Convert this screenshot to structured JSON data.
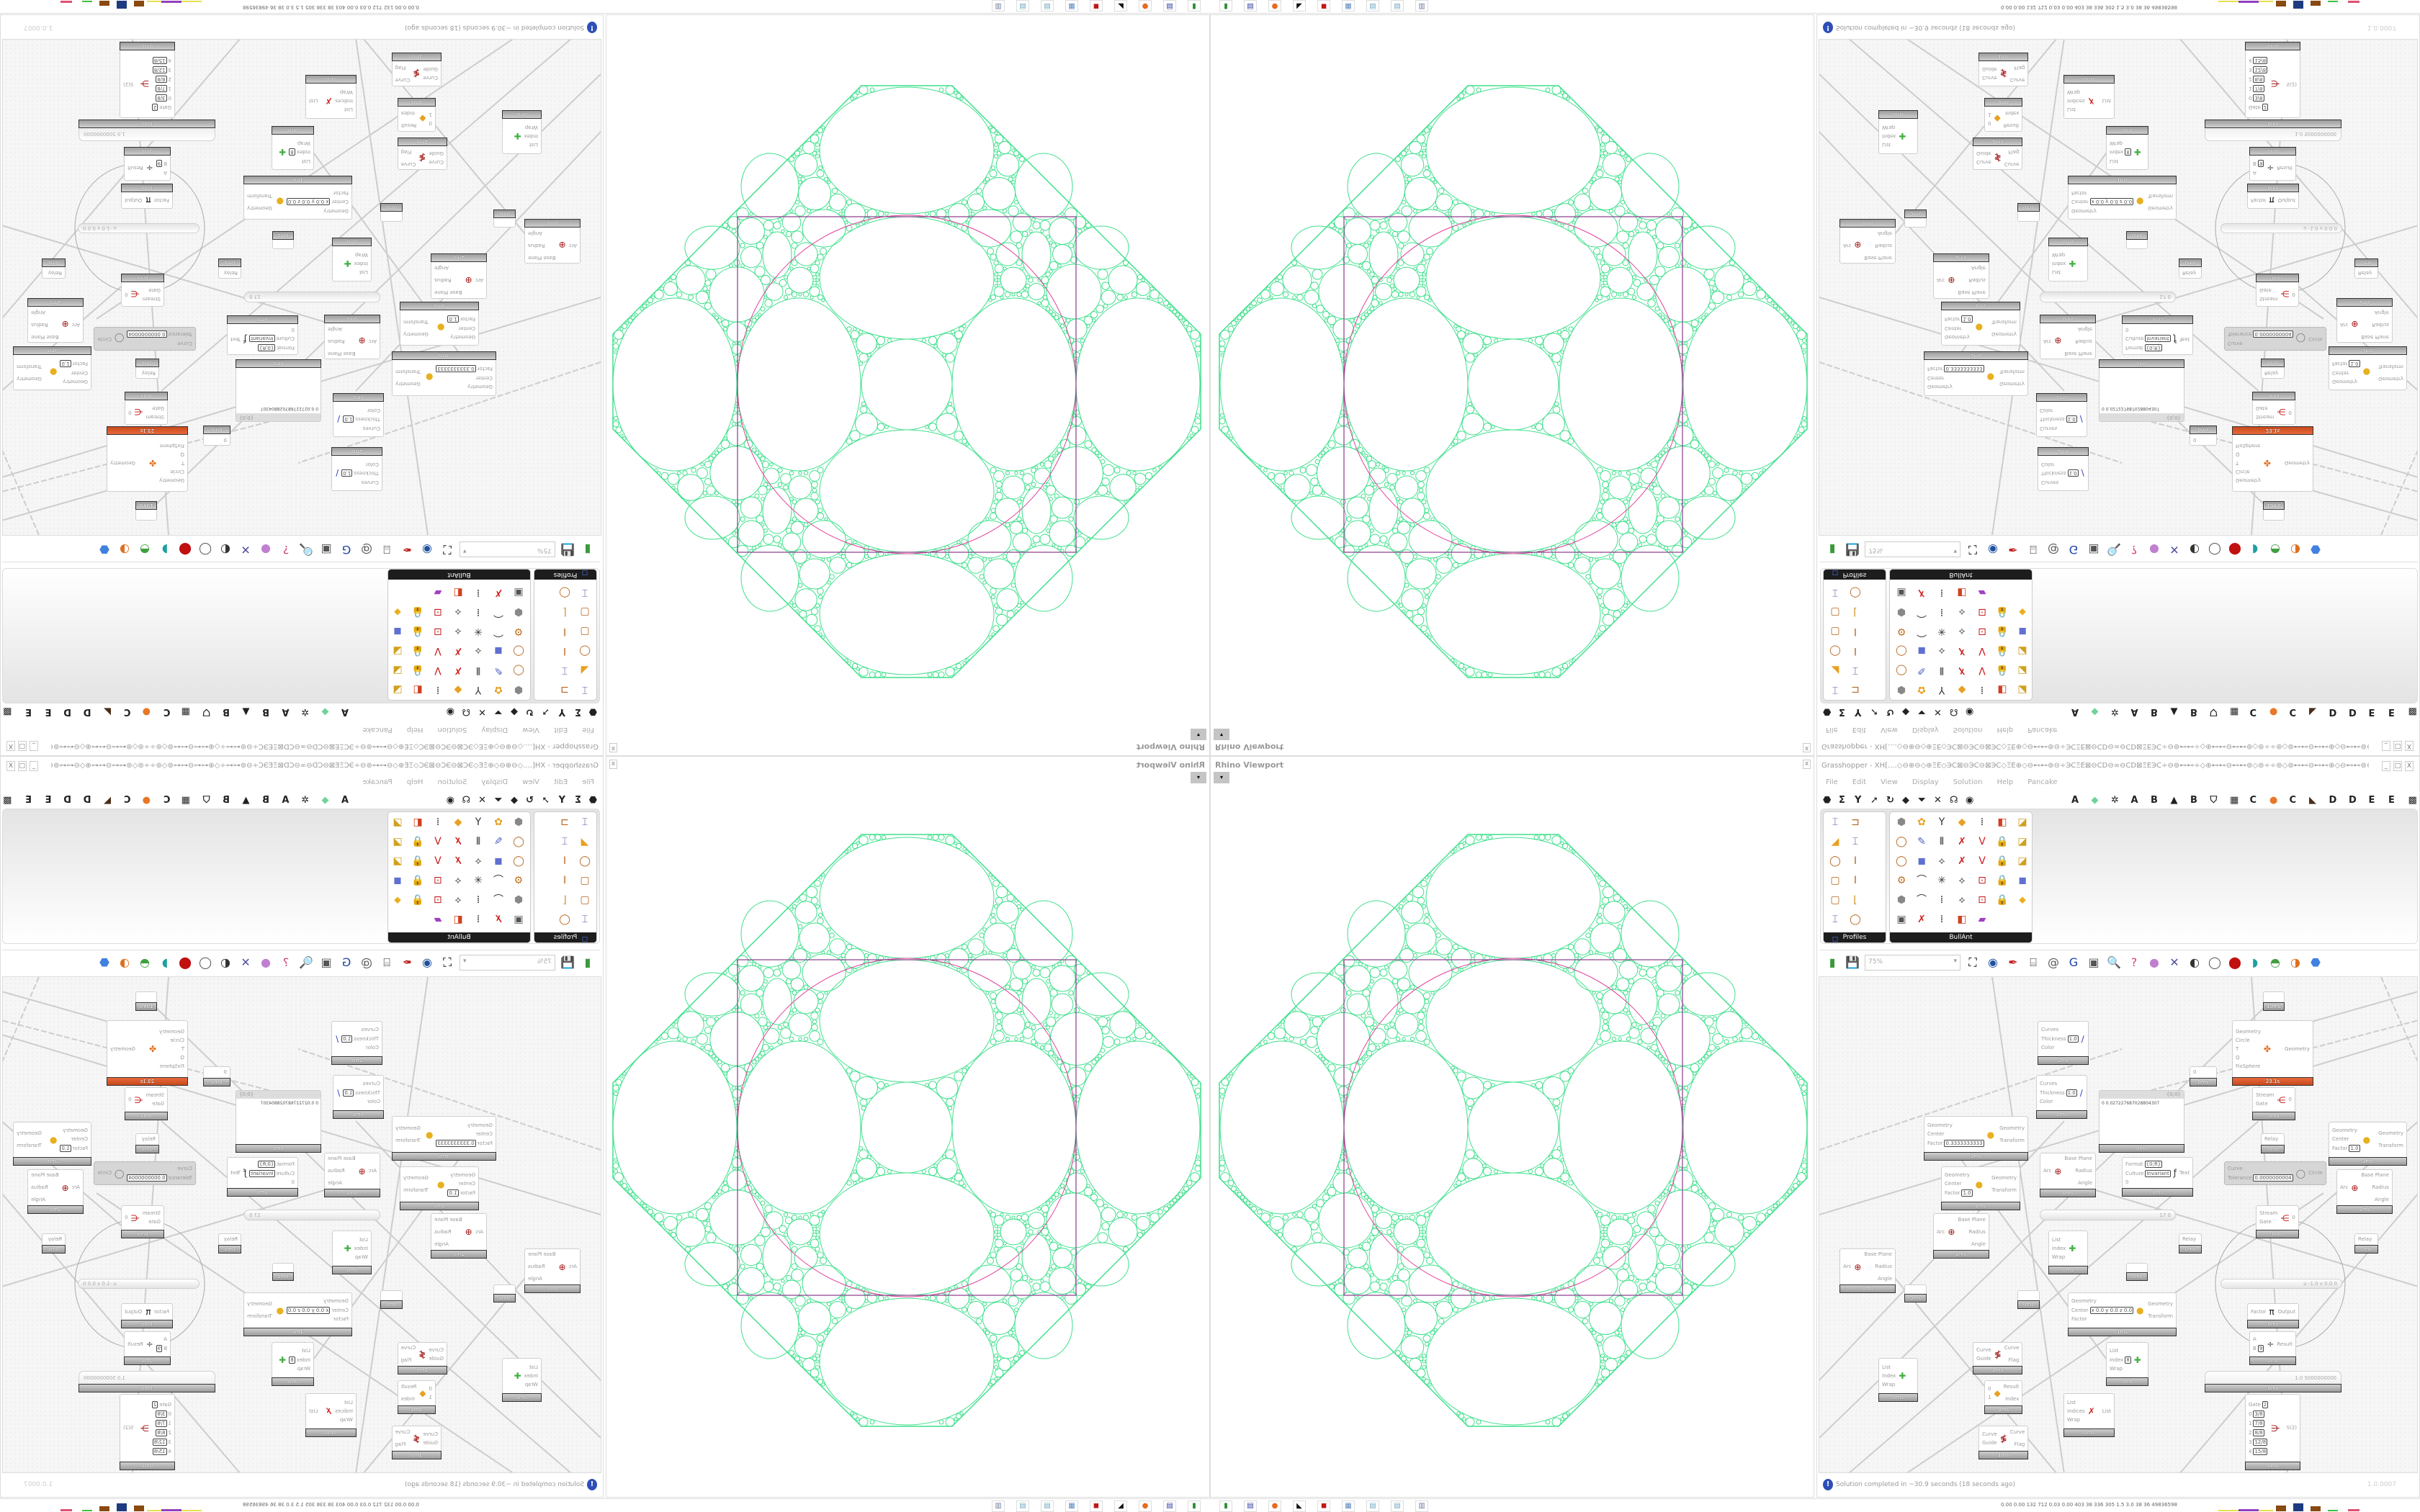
{
  "rhino": {
    "title": "Rhino Viewport",
    "close": "x",
    "view_menu": "▾"
  },
  "grasshopper": {
    "title": "Grasshopper - XH[....◇⊖⊕⊖◇⊕ΞΕ◇ЭⅭ⊠⊖ЭⅭ⊖⊠ЭⅭ◇ΞΕ⊕◇⊖⊷⊷⊚⊖÷ЭⅭΞΕ⊠⊖ⅭⅮ⊖∞⊖ⅭⅮ⊠ΞΕЭⅭ÷⊖⊚⊷⊷÷◇⊕⊷⊷⊖⊷⊷⊚◇⊚÷÷⊚◇⊚⊷⊷⊖⊷⊷⊕◇⊖⊷⊷⊚⊖÷ЭⅭΞΕ⊠⊖ⅭⅮ⊖∞⊖...",
    "window_buttons": [
      "_",
      "□",
      "X"
    ],
    "menu": [
      "File",
      "Edit",
      "View",
      "Display",
      "Solution",
      "Help",
      "Pancake"
    ],
    "tabs_left": [
      "⬣",
      "Σ",
      "Y",
      "➚",
      "↻",
      "◆",
      "⏷",
      "✕",
      "☊",
      "◉"
    ],
    "tabs_right": [
      "A",
      "◆",
      "✲",
      "A",
      "B",
      "▲",
      "B",
      "⛉",
      "▦",
      "C",
      "●",
      "C",
      "◣",
      "D",
      "D",
      "E",
      "E",
      "▩"
    ],
    "panels": [
      {
        "label": "Profiles",
        "icons": [
          "I-profile",
          "channel",
          "angle-shape",
          "I-profile",
          "ring",
          "I-beam",
          "box-profile",
          "I-beam",
          "box-profile",
          "L-profile",
          "I-profile",
          "ring",
          "small-squares"
        ]
      },
      {
        "label": "BullAnt",
        "icons": [
          "solid",
          "flower",
          "vector-tree",
          "kite",
          "node-align",
          "red-frame",
          "red-box",
          "ring",
          "brush",
          "columns",
          "red-x",
          "red-v",
          "lock-tool",
          "red-box",
          "ring",
          "blue-cube",
          "polyline",
          "red-x",
          "red-v",
          "lock-tool",
          "red-box",
          "gear-ring",
          "curve",
          "spark",
          "polyline",
          "node-red",
          "lock-tool",
          "blue-cube",
          "solid",
          "curve",
          "node-align",
          "polyline",
          "node-red",
          "lock-tool",
          "yellow-gem",
          "panel",
          "red-x",
          "node-align",
          "red-frame",
          "rainbow"
        ]
      }
    ],
    "canvas_toolbar": {
      "zoom": "75%",
      "icons": [
        "open-file",
        "save-file",
        "zoom-extents",
        "preview-eye",
        "sketch-pen",
        "cluster",
        "email",
        "gha",
        "window",
        "search-s",
        "help-box",
        "bulb",
        "wires",
        "shade-a",
        "shade-b",
        "shade-c",
        "surface-a",
        "surface-b",
        "surface-c",
        "sphere"
      ]
    },
    "status": {
      "message": "Solution completed in ~30.9 seconds (18 seconds ago)",
      "version": "1.0.0007"
    },
    "nodes": [
      {
        "footer": "19ms"
      },
      {
        "inputs": [
          {
            "label": "Curves"
          },
          {
            "label": "Thickness",
            "value": "1.0"
          },
          {
            "label": "Color"
          }
        ],
        "icon": "custom-preview-blue",
        "footer": "2ms"
      },
      {
        "inputs": [
          {
            "label": "Curves"
          },
          {
            "label": "Thickness",
            "value": "1.0"
          },
          {
            "label": "Color"
          }
        ],
        "icon": "custom-preview-white",
        "footer": "0ms"
      },
      {
        "inputs": [
          {
            "label": "Geometry"
          },
          {
            "label": "Circle"
          },
          {
            "label": "T"
          },
          {
            "label": "Q"
          },
          {
            "label": "FixSphere"
          }
        ],
        "outputs": [
          "Geometry"
        ],
        "icon": "kangaroo",
        "footer": "23.1s",
        "hot": true
      },
      {
        "inputs": [
          {
            "label": "0"
          }
        ],
        "footer": "0ms"
      },
      {
        "inputs": [
          {
            "label": "Stream"
          },
          {
            "label": "Gate"
          }
        ],
        "outputs": [
          "0"
        ],
        "icon": "stream-gate",
        "footer": "0ms"
      },
      {
        "panel": true,
        "header": "{0;0}",
        "text": "0  0.027227687028804307",
        "footer": "0ms"
      },
      {
        "inputs": [
          {
            "label": "Relay"
          }
        ],
        "footer": "0ms"
      },
      {
        "inputs": [
          {
            "label": "Geometry"
          },
          {
            "label": "Center"
          },
          {
            "label": "Factor",
            "value": "0.3333333333"
          }
        ],
        "outputs": [
          "Geometry",
          "Transform"
        ],
        "icon": "scale",
        "footer": "3ms"
      },
      {
        "inputs": [
          {
            "label": "Geometry"
          },
          {
            "label": "Center"
          },
          {
            "label": "Factor",
            "value": "1.0"
          }
        ],
        "outputs": [
          "Geometry",
          "Transform"
        ],
        "icon": "scale",
        "footer": "3ms"
      },
      {
        "inputs": [
          {
            "label": "Arc"
          }
        ],
        "outputs": [
          "Base Plane",
          "Radius",
          "Angle"
        ],
        "icon": "arc",
        "footer": "0ms"
      },
      {
        "inputs": [
          {
            "label": "Format",
            "value": "{0;R}"
          },
          {
            "label": "Culture",
            "value": "Invariant"
          },
          {
            "label": "0"
          }
        ],
        "outputs": [
          "Text"
        ],
        "icon": "format",
        "footer": "0ms"
      },
      {
        "inputs": [
          {
            "label": "Curve"
          },
          {
            "label": "Tolerance",
            "value": "0.0000000004"
          }
        ],
        "outputs": [
          "Circle"
        ],
        "icon": "circle-fit",
        "disabled": true
      },
      {
        "inputs": [
          {
            "label": "Geometry"
          },
          {
            "label": "Center"
          },
          {
            "label": "Factor",
            "value": "1.0"
          }
        ],
        "outputs": [
          "Geometry",
          "Transform"
        ],
        "icon": "scale",
        "footer": "3ms"
      },
      {
        "inputs": [
          {
            "label": "Arc"
          }
        ],
        "outputs": [
          "Base Plane",
          "Radius",
          "Angle"
        ],
        "icon": "arc",
        "footer": "2ms"
      },
      {
        "inputs": [
          {
            "label": "Arc"
          }
        ],
        "outputs": [
          "Base Plane",
          "Radius",
          "Angle"
        ],
        "icon": "arc",
        "footer": "2ms"
      },
      {
        "slider": true,
        "value": "17  0"
      },
      {
        "inputs": [
          {
            "label": "List"
          },
          {
            "label": "Index"
          },
          {
            "label": "Wrap"
          }
        ],
        "icon": "list-item",
        "footer": "0ms"
      },
      {
        "inputs": [
          {
            "label": "Relay"
          }
        ],
        "footer": "0ms"
      },
      {
        "inputs": [
          {
            "label": "Stream"
          },
          {
            "label": "Gate"
          }
        ],
        "outputs": [
          "0"
        ],
        "icon": "stream-gate",
        "footer": "0ms"
      },
      {
        "inputs": [
          {
            "label": "Relay"
          }
        ],
        "footer": "0ms"
      },
      {
        "inputs": [
          {
            "label": "Arc"
          }
        ],
        "outputs": [
          "Base Plane",
          "Radius",
          "Angle"
        ],
        "icon": "arc",
        "footer": "0ms"
      },
      {
        "footer": "0ms"
      },
      {
        "footer": "0ms"
      },
      {
        "footer": "0ms"
      },
      {
        "slider": true,
        "value": "u -1.0  v 0.0  0"
      },
      {
        "inputs": [
          {
            "label": "Geometry"
          },
          {
            "label": "Center",
            "value": "x 0.0 y 0.0 z 0.0"
          },
          {
            "label": "Factor"
          }
        ],
        "outputs": [
          "Geometry",
          "Transform"
        ],
        "icon": "scale",
        "footer": "1ms"
      },
      {
        "inputs": [
          {
            "label": "Factor"
          }
        ],
        "outputs": [
          "Output"
        ],
        "icon": "pi",
        "footer": "0ms"
      },
      {
        "inputs": [
          {
            "label": "A"
          },
          {
            "label": "B",
            "value": "9"
          }
        ],
        "outputs": [
          "Result"
        ],
        "icon": "division",
        "footer": "0ms"
      },
      {
        "inputs": [
          {
            "label": "Curve"
          },
          {
            "label": "Guide"
          }
        ],
        "outputs": [
          "Curve",
          "Flag"
        ],
        "icon": "flip-curve",
        "footer": "2ms"
      },
      {
        "inputs": [
          {
            "label": "List"
          },
          {
            "label": "Index",
            "value": "8"
          },
          {
            "label": "Wrap"
          }
        ],
        "icon": "list-item",
        "footer": "0ms"
      },
      {
        "inputs": [
          {
            "label": "List"
          },
          {
            "label": "Index"
          },
          {
            "label": "Wrap"
          }
        ],
        "icon": "list-item",
        "footer": "0ms"
      },
      {
        "slider": true,
        "value": "1.0  5000000000",
        "footer": "0ms"
      },
      {
        "inputs": [
          {
            "label": "0"
          },
          {
            "label": "1"
          }
        ],
        "outputs": [
          "Result",
          "Index"
        ],
        "icon": "dispatch",
        "footer": "0ms"
      },
      {
        "inputs": [
          {
            "label": "List"
          },
          {
            "label": "Indices"
          },
          {
            "label": "Wrap"
          }
        ],
        "outputs": [
          "List"
        ],
        "icon": "cull-index",
        "footer": "0ms"
      },
      {
        "inputs": [
          {
            "label": "Gate",
            "value": "2"
          },
          {
            "label": "0",
            "value": "3/8"
          },
          {
            "label": "1",
            "value": "7/8"
          },
          {
            "label": "2",
            "value": "8/8"
          },
          {
            "label": "3",
            "value": "12/8"
          },
          {
            "label": "4",
            "value": "15/8"
          }
        ],
        "outputs": [
          "S(2)"
        ],
        "icon": "stream-filter",
        "footer": "0ms"
      },
      {
        "inputs": [
          {
            "label": "Curve"
          },
          {
            "label": "Guide"
          }
        ],
        "outputs": [
          "Curve",
          "Flag"
        ],
        "icon": "flip-curve",
        "footer": "1ms"
      }
    ]
  },
  "taskbar": {
    "apps": [
      "app-launcher",
      "floppy-64",
      "firefox",
      "rhino",
      "red-app",
      "calculator",
      "notepad",
      "notepad",
      "scroll"
    ],
    "stats": "0.00 0.00  132  712  0.03 0.00  403   38   336  305  1.5  3.0   38    36  49836598"
  },
  "colors": {
    "geometry": "#3fe08c",
    "highlight": "#e0409a",
    "frame": "#8a3a8a",
    "hot_component": "#d4542a",
    "panel_label": "#1d1d1d"
  }
}
